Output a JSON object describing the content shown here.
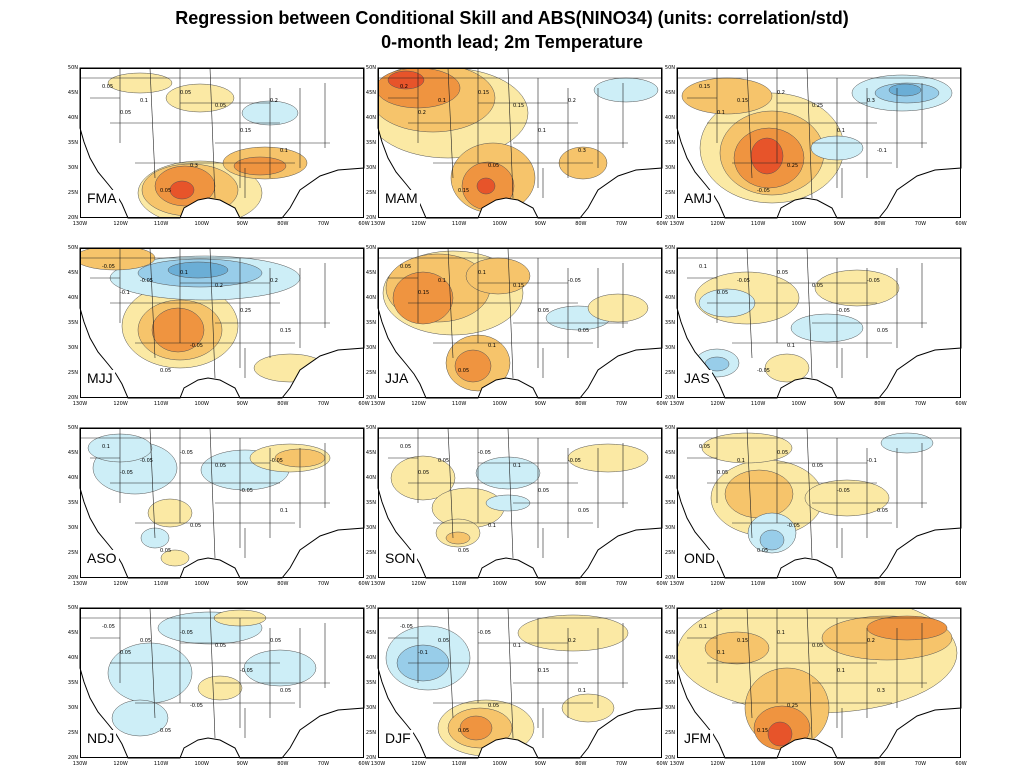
{
  "title": {
    "line1": "Regression between Conditional Skill and ABS(NINO34) (units: correlation/std)",
    "line2": "0-month lead; 2m Temperature"
  },
  "axes": {
    "lat_labels": [
      "50N",
      "45N",
      "40N",
      "35N",
      "30N",
      "25N",
      "20N"
    ],
    "lon_labels": [
      "130W",
      "120W",
      "110W",
      "100W",
      "90W",
      "80W",
      "70W",
      "60W"
    ]
  },
  "colors": {
    "pos_weak": "#fbe9a4",
    "pos_mid": "#f6c46b",
    "pos_strong": "#ef9440",
    "pos_max": "#e7542a",
    "neg_weak": "#cdeef7",
    "neg_mid": "#98cde9",
    "neg_strong": "#6baed6"
  },
  "panels": [
    {
      "season": "FMA",
      "contour_labels": [
        "0.05",
        "0.05",
        "0.1",
        "0.05",
        "0.05",
        "0.15",
        "0.2",
        "0.3",
        "0.1",
        "0.05"
      ]
    },
    {
      "season": "MAM",
      "contour_labels": [
        "0.2",
        "0.2",
        "0.1",
        "0.15",
        "0.15",
        "0.1",
        "0.2",
        "0.05",
        "0.3",
        "0.15"
      ]
    },
    {
      "season": "AMJ",
      "contour_labels": [
        "0.15",
        "0.1",
        "0.15",
        "0.2",
        "0.25",
        "0.1",
        "0.3",
        "0.25",
        "-0.1",
        "-0.05"
      ]
    },
    {
      "season": "MJJ",
      "contour_labels": [
        "-0.05",
        "-0.1",
        "-0.05",
        "0.1",
        "0.2",
        "0.25",
        "0.2",
        "-0.05",
        "0.15",
        "0.05"
      ]
    },
    {
      "season": "JJA",
      "contour_labels": [
        "0.05",
        "0.15",
        "0.1",
        "0.1",
        "0.15",
        "0.05",
        "-0.05",
        "0.1",
        "0.05",
        "0.05"
      ]
    },
    {
      "season": "JAS",
      "contour_labels": [
        "0.1",
        "0.05",
        "-0.05",
        "0.05",
        "0.05",
        "-0.05",
        "-0.05",
        "0.1",
        "0.05",
        "-0.05"
      ]
    },
    {
      "season": "ASO",
      "contour_labels": [
        "0.1",
        "-0.05",
        "-0.05",
        "-0.05",
        "0.05",
        "-0.05",
        "-0.05",
        "0.05",
        "0.1",
        "0.05"
      ]
    },
    {
      "season": "SON",
      "contour_labels": [
        "0.05",
        "0.05",
        "0.05",
        "-0.05",
        "0.1",
        "0.05",
        "-0.05",
        "0.1",
        "0.05",
        "0.05"
      ]
    },
    {
      "season": "OND",
      "contour_labels": [
        "0.05",
        "0.05",
        "0.1",
        "0.05",
        "0.05",
        "-0.05",
        "-0.1",
        "-0.05",
        "0.05",
        "0.05"
      ]
    },
    {
      "season": "NDJ",
      "contour_labels": [
        "-0.05",
        "0.05",
        "0.05",
        "-0.05",
        "0.05",
        "-0.05",
        "0.05",
        "-0.05",
        "0.05",
        "0.05"
      ]
    },
    {
      "season": "DJF",
      "contour_labels": [
        "-0.05",
        "-0.1",
        "0.05",
        "-0.05",
        "0.1",
        "0.15",
        "0.2",
        "0.05",
        "0.1",
        "0.05"
      ]
    },
    {
      "season": "JFM",
      "contour_labels": [
        "0.1",
        "0.1",
        "0.15",
        "0.1",
        "0.05",
        "0.1",
        "0.2",
        "0.25",
        "0.3",
        "0.15"
      ]
    }
  ]
}
